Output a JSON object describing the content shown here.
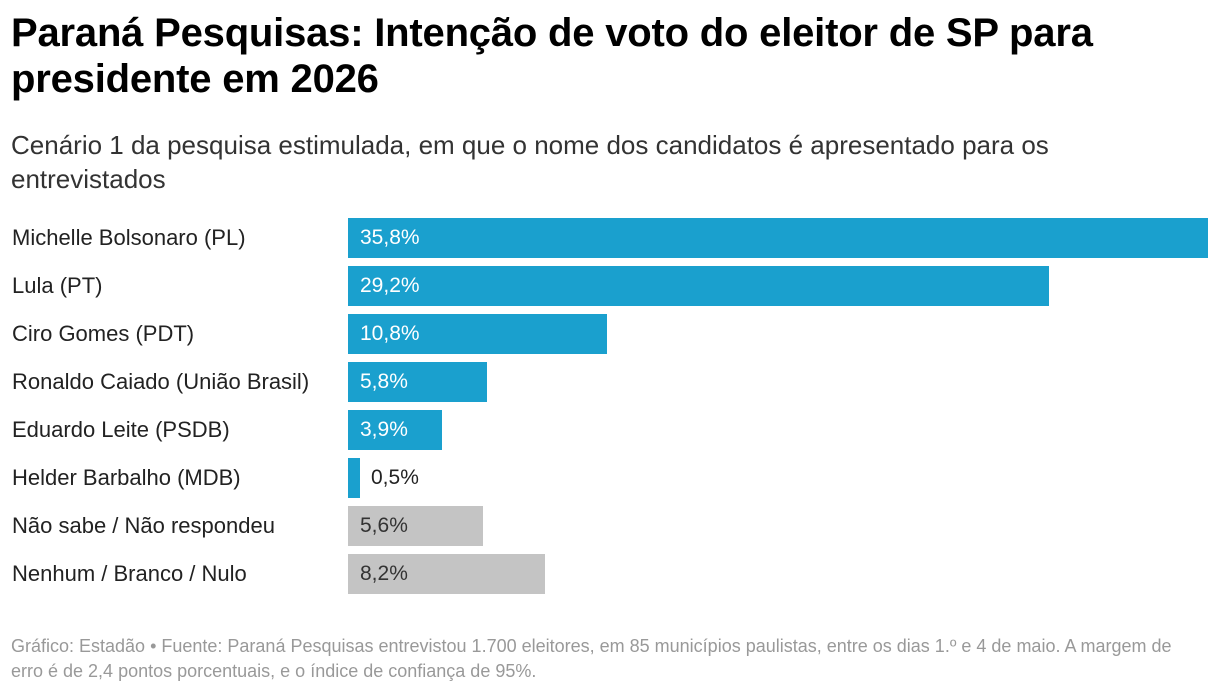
{
  "chart_data": {
    "type": "bar",
    "orientation": "horizontal",
    "title": "Paraná Pesquisas: Intenção de voto do eleitor de SP para presidente em 2026",
    "subtitle": "Cenário 1 da pesquisa estimulada, em que o nome dos candidatos é apresentado para os entrevistados",
    "categories": [
      "Michelle Bolsonaro (PL)",
      "Lula (PT)",
      "Ciro Gomes (PDT)",
      "Ronaldo Caiado (União Brasil)",
      "Eduardo Leite (PSDB)",
      "Helder Barbalho (MDB)",
      "Não sabe / Não respondeu",
      "Nenhum / Branco / Nulo"
    ],
    "values": [
      35.8,
      29.2,
      10.8,
      5.8,
      3.9,
      0.5,
      5.6,
      8.2
    ],
    "value_labels": [
      "35,8%",
      "29,2%",
      "10,8%",
      "5,8%",
      "3,9%",
      "0,5%",
      "5,6%",
      "8,2%"
    ],
    "bar_colors": [
      "#1aa0ce",
      "#1aa0ce",
      "#1aa0ce",
      "#1aa0ce",
      "#1aa0ce",
      "#1aa0ce",
      "#c4c4c4",
      "#c4c4c4"
    ],
    "xlim": [
      0,
      35.8
    ],
    "xlabel": "",
    "ylabel": "",
    "grid": false,
    "source": "Gráfico: Estadão • Fuente: Paraná Pesquisas entrevistou 1.700 eleitores, em 85 municípios paulistas, entre os dias 1.º e 4 de maio. A margem de erro é de 2,4 pontos porcentuais, e o índice de confiança de 95%."
  }
}
